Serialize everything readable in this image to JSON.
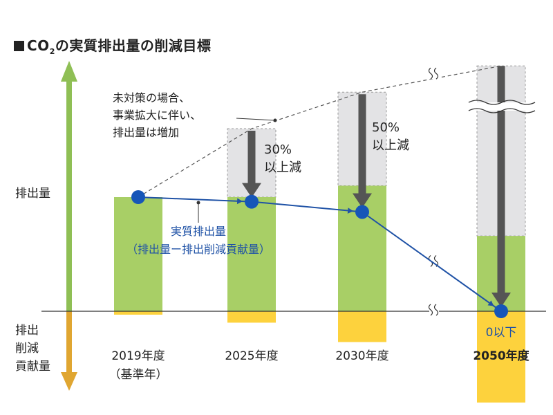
{
  "title": {
    "prefix": "CO",
    "subscript": "2",
    "rest": "の実質排出量の削減目標"
  },
  "axis": {
    "up_label": "排出量",
    "down_label_lines": [
      "排出",
      "削減",
      "貢献量"
    ]
  },
  "annotations": {
    "bau_lines": [
      "未対策の場合、",
      "事業拡大に伴い、",
      "排出量は増加"
    ],
    "net_lines": [
      "実質排出量",
      "（排出量ー排出削減貢献量）"
    ],
    "zero_label": "0以下"
  },
  "reductions": [
    {
      "year": "2025年度",
      "lines": [
        "30%",
        "以上減"
      ]
    },
    {
      "year": "2030年度",
      "lines": [
        "50%",
        "以上減"
      ]
    }
  ],
  "colors": {
    "emissions": "#a8cf66",
    "contribution": "#fdd23d",
    "bau_gray": "#e3e3e5",
    "net_line": "#1f52a6",
    "marker": "#1656b8",
    "arrow": "#555555",
    "axis_up": "#8fbf55",
    "axis_down": "#e0a631"
  },
  "chart_data": {
    "type": "bar",
    "categories": [
      "2019年度\n（基準年）",
      "2025年度",
      "2030年度",
      "2050年度"
    ],
    "series": [
      {
        "values": [
          100,
          100,
          110,
          66
        ]
      },
      {
        "values": [
          -3,
          -10,
          -27,
          -80
        ]
      },
      {
        "values": [
          100,
          160,
          192,
          215
        ]
      },
      {
        "values": [
          100,
          96,
          87,
          0
        ]
      }
    ],
    "ylim": [
      -80,
      215
    ],
    "grid": false
  }
}
